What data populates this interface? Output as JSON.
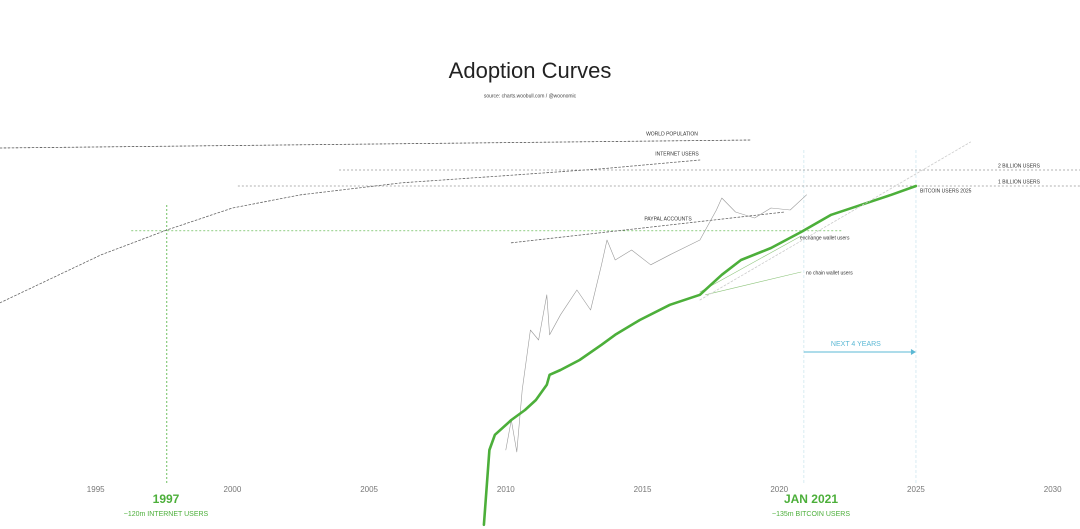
{
  "chart_data": {
    "type": "line",
    "title": "Adoption Curves",
    "subtitle": "source: charts.woobull.com / @woonomic",
    "xlim": [
      1991.5,
      2031
    ],
    "ylim": [
      0,
      100
    ],
    "xticks": [
      1995,
      2000,
      2005,
      2010,
      2015,
      2020,
      2025,
      2030
    ],
    "series": [
      {
        "name": "WORLD POPULATION",
        "color": "#555555",
        "style": "dotted",
        "x": [
          1991.5,
          2019.0
        ],
        "values": [
          95.5,
          97.5
        ]
      },
      {
        "name": "INTERNET USERS",
        "color": "#666666",
        "style": "dotted",
        "x": [
          1991.5,
          1995.2,
          1997.6,
          2000.0,
          2002.5,
          2006.2,
          2009.8,
          2013.5,
          2017.1
        ],
        "values": [
          56.8,
          68.8,
          75,
          80.5,
          83.8,
          86.8,
          88.5,
          90.3,
          92.5
        ]
      },
      {
        "name": "PAYPAL ACCOUNTS",
        "color": "#666666",
        "style": "dotted",
        "x": [
          2010.2,
          2020.2
        ],
        "values": [
          71.8,
          79.5
        ]
      },
      {
        "color": "#9a9a9a",
        "style": "thin",
        "x": [
          2010.0,
          2010.2,
          2010.4,
          2010.6,
          2010.9,
          2011.2,
          2011.5,
          2011.6,
          2012.0,
          2012.6,
          2013.1,
          2013.5,
          2013.7,
          2014.0,
          2014.6,
          2015.3,
          2016.0,
          2017.1,
          2017.7,
          2017.9,
          2018.4,
          2019.1,
          2019.7,
          2020.4,
          2021.0
        ],
        "values": [
          20,
          27.5,
          19.5,
          35,
          50,
          47.5,
          58.8,
          48.8,
          53.8,
          60,
          55,
          66.3,
          72.5,
          67.5,
          70,
          66.3,
          68.8,
          72.5,
          80,
          83,
          79.5,
          78,
          80.5,
          80,
          83.8
        ]
      },
      {
        "name": "exchange wallet users",
        "color": "#8cc47a",
        "style": "thin",
        "x": [
          2017.1,
          2020.8
        ],
        "values": [
          59.5,
          73.5
        ]
      },
      {
        "name": "no chain wallet users",
        "color": "#8cc47a",
        "style": "thin",
        "x": [
          2017.3,
          2020.8
        ],
        "values": [
          58.8,
          64.5
        ]
      },
      {
        "name": "BITCOIN USERS 2025",
        "color": "#4caf3a",
        "style": "thick",
        "x": [
          2009.2,
          2009.4,
          2009.6,
          2010.2,
          2010.7,
          2011.1,
          2011.5,
          2011.6,
          2012.0,
          2012.7,
          2013.5,
          2014.0,
          2014.9,
          2016.0,
          2017.1,
          2017.9,
          2018.6,
          2019.7,
          2020.8,
          2021.9,
          2023.0,
          2024.1,
          2025.0
        ],
        "values": [
          1.3,
          20,
          23.8,
          27.5,
          30,
          32.5,
          36.3,
          38.8,
          40,
          42.5,
          46.3,
          48.8,
          52.5,
          56.3,
          58.8,
          63.8,
          67.5,
          70.5,
          74.5,
          78.8,
          81.3,
          83.8,
          86
        ]
      },
      {
        "color": "#cccccc",
        "style": "dotted",
        "x": [
          2017.1,
          2027.0
        ],
        "values": [
          57.5,
          97
        ]
      }
    ],
    "hlines": [
      {
        "label": "2 BILLION USERS",
        "value": 90,
        "x": [
          2003.9,
          2031
        ]
      },
      {
        "label": "1 BILLION USERS",
        "value": 86,
        "x": [
          2000.2,
          2031
        ]
      }
    ],
    "guides": {
      "color": "#4caf3a",
      "vlines": [
        1997.6,
        2020.9,
        2025.0
      ],
      "hline": 74.8,
      "hline_x": [
        1996.3,
        2022.3
      ]
    },
    "span": {
      "label": "NEXT 4 YEARS",
      "from": 2020.9,
      "to": 2025.0,
      "color": "#5bb8d4"
    },
    "annotations": [
      {
        "title": "1997",
        "text": "~120m INTERNET USERS"
      },
      {
        "title": "JAN 2021",
        "text": "~135m BITCOIN USERS"
      }
    ]
  }
}
